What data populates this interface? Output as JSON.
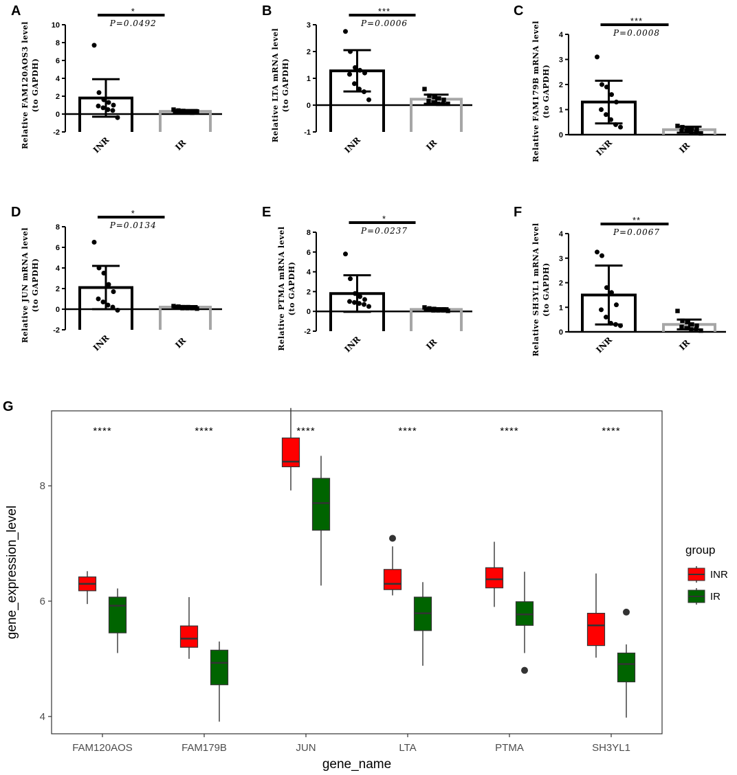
{
  "colors": {
    "inr": "#ff0000",
    "ir": "#006400",
    "ir_bar": "#a6a6a6",
    "axis": "#000000",
    "median": "#333333"
  },
  "chart_data": [
    {
      "panel": "A",
      "type": "bar",
      "ylabel_1": "Relative FAM120AOS3 level",
      "ylabel_2": "(to GAPDH)",
      "ylim": [
        -2,
        10
      ],
      "yticks": [
        "-2",
        "0",
        "2",
        "4",
        "6",
        "8",
        "10"
      ],
      "categories": [
        "INR",
        "IR"
      ],
      "means": [
        1.8,
        0.3
      ],
      "sd": [
        2.1,
        0.15
      ],
      "points": [
        [
          7.7,
          2.4,
          1.6,
          1.3,
          1.0,
          0.9,
          0.7,
          0.5,
          0.4,
          -0.4
        ],
        [
          0.5,
          0.4,
          0.35,
          0.3,
          0.3,
          0.25,
          0.2,
          0.2,
          0.15,
          0.3
        ]
      ],
      "stars": "*",
      "p": "P=0.0492"
    },
    {
      "panel": "B",
      "type": "bar",
      "ylabel_1": "Relative LTA mRNA level",
      "ylabel_2": "(to GAPDH)",
      "ylim": [
        -1,
        3
      ],
      "yticks": [
        "-1",
        "0",
        "1",
        "2",
        "3"
      ],
      "categories": [
        "INR",
        "IR"
      ],
      "means": [
        1.28,
        0.22
      ],
      "sd": [
        0.77,
        0.17
      ],
      "points": [
        [
          2.75,
          2.0,
          1.4,
          1.3,
          1.2,
          1.15,
          0.8,
          0.6,
          0.5,
          0.2
        ],
        [
          0.6,
          0.35,
          0.3,
          0.25,
          0.2,
          0.15,
          0.1,
          0.05,
          0.05,
          0.05
        ]
      ],
      "stars": "***",
      "p": "P=0.0006"
    },
    {
      "panel": "C",
      "type": "bar",
      "ylabel_1": "Relative FAM179B mRNA level",
      "ylabel_2": "(to GAPDH)",
      "ylim": [
        0,
        4
      ],
      "yticks": [
        "0",
        "1",
        "2",
        "3",
        "4"
      ],
      "categories": [
        "INR",
        "IR"
      ],
      "means": [
        1.3,
        0.2
      ],
      "sd": [
        0.85,
        0.12
      ],
      "points": [
        [
          3.1,
          2.0,
          1.9,
          1.6,
          1.3,
          1.0,
          0.8,
          0.6,
          0.4,
          0.3
        ],
        [
          0.35,
          0.3,
          0.25,
          0.25,
          0.2,
          0.15,
          0.15,
          0.1,
          0.1,
          0.05
        ]
      ],
      "stars": "***",
      "p": "P=0.0008"
    },
    {
      "panel": "D",
      "type": "bar",
      "ylabel_1": "Relative JUN mRNA level",
      "ylabel_2": "(to GAPDH)",
      "ylim": [
        -2,
        8
      ],
      "yticks": [
        "-2",
        "0",
        "2",
        "4",
        "6",
        "8"
      ],
      "categories": [
        "INR",
        "IR"
      ],
      "means": [
        2.1,
        0.2
      ],
      "sd": [
        2.1,
        0.1
      ],
      "points": [
        [
          6.5,
          4.0,
          3.5,
          2.4,
          1.7,
          1.0,
          0.7,
          0.4,
          0.2,
          -0.1
        ],
        [
          0.3,
          0.25,
          0.2,
          0.2,
          0.15,
          0.15,
          0.1,
          0.1,
          0.1,
          0.05
        ]
      ],
      "stars": "*",
      "p": "P=0.0134"
    },
    {
      "panel": "E",
      "type": "bar",
      "ylabel_1": "Relative PTMA mRNA level",
      "ylabel_2": "(to GAPDH)",
      "ylim": [
        -2,
        8
      ],
      "yticks": [
        "-2",
        "0",
        "2",
        "4",
        "6",
        "8"
      ],
      "categories": [
        "INR",
        "IR"
      ],
      "means": [
        1.8,
        0.2
      ],
      "sd": [
        1.85,
        0.12
      ],
      "points": [
        [
          5.8,
          3.3,
          1.8,
          1.5,
          1.2,
          1.0,
          0.9,
          0.8,
          0.7,
          0.5
        ],
        [
          0.4,
          0.3,
          0.25,
          0.2,
          0.2,
          0.15,
          0.1,
          0.1,
          0.1,
          0.05
        ]
      ],
      "stars": "*",
      "p": "P=0.0237"
    },
    {
      "panel": "F",
      "type": "bar",
      "ylabel_1": "Relative SH3YL1 mRNA level",
      "ylabel_2": "(to GAPDH)",
      "ylim": [
        0,
        4
      ],
      "yticks": [
        "0",
        "1",
        "2",
        "3",
        "4"
      ],
      "categories": [
        "INR",
        "IR"
      ],
      "means": [
        1.5,
        0.3
      ],
      "sd": [
        1.2,
        0.2
      ],
      "points": [
        [
          3.25,
          3.1,
          1.8,
          1.6,
          1.1,
          0.9,
          0.6,
          0.35,
          0.3,
          0.25
        ],
        [
          0.85,
          0.45,
          0.4,
          0.3,
          0.25,
          0.2,
          0.15,
          0.1,
          0.1,
          0.05
        ]
      ],
      "stars": "**",
      "p": "P=0.0067"
    },
    {
      "panel": "G",
      "type": "box",
      "xlabel": "gene_name",
      "ylabel": "gene_expression_level",
      "ylim": [
        3.7,
        9.3
      ],
      "yticks": [
        4,
        6,
        8
      ],
      "categories": [
        "FAM120AOS",
        "FAM179B",
        "JUN",
        "LTA",
        "PTMA",
        "SH3YL1"
      ],
      "legend_title": "group",
      "legend_location": "right",
      "stars": [
        "****",
        "****",
        "****",
        "****",
        "****",
        "****"
      ],
      "series": [
        {
          "name": "INR",
          "boxes": [
            {
              "min": 5.95,
              "q1": 6.18,
              "median": 6.3,
              "q3": 6.42,
              "max": 6.52,
              "outliers": []
            },
            {
              "min": 5.0,
              "q1": 5.2,
              "median": 5.35,
              "q3": 5.57,
              "max": 6.07,
              "outliers": []
            },
            {
              "min": 7.92,
              "q1": 8.33,
              "median": 8.42,
              "q3": 8.83,
              "max": 9.35,
              "outliers": []
            },
            {
              "min": 6.1,
              "q1": 6.2,
              "median": 6.3,
              "q3": 6.55,
              "max": 6.95,
              "outliers": [
                7.09
              ]
            },
            {
              "min": 5.9,
              "q1": 6.23,
              "median": 6.38,
              "q3": 6.58,
              "max": 7.03,
              "outliers": []
            },
            {
              "min": 5.02,
              "q1": 5.23,
              "median": 5.58,
              "q3": 5.79,
              "max": 6.48,
              "outliers": []
            }
          ]
        },
        {
          "name": "IR",
          "boxes": [
            {
              "min": 5.1,
              "q1": 5.45,
              "median": 5.92,
              "q3": 6.07,
              "max": 6.22,
              "outliers": []
            },
            {
              "min": 3.91,
              "q1": 4.55,
              "median": 4.93,
              "q3": 5.15,
              "max": 5.3,
              "outliers": []
            },
            {
              "min": 6.27,
              "q1": 7.23,
              "median": 7.7,
              "q3": 8.13,
              "max": 8.52,
              "outliers": []
            },
            {
              "min": 4.88,
              "q1": 5.49,
              "median": 5.79,
              "q3": 6.07,
              "max": 6.33,
              "outliers": []
            },
            {
              "min": 5.1,
              "q1": 5.58,
              "median": 5.77,
              "q3": 5.99,
              "max": 6.51,
              "outliers": [
                4.8
              ]
            },
            {
              "min": 3.98,
              "q1": 4.6,
              "median": 4.91,
              "q3": 5.1,
              "max": 5.25,
              "outliers": [
                5.81
              ]
            }
          ]
        }
      ]
    }
  ]
}
